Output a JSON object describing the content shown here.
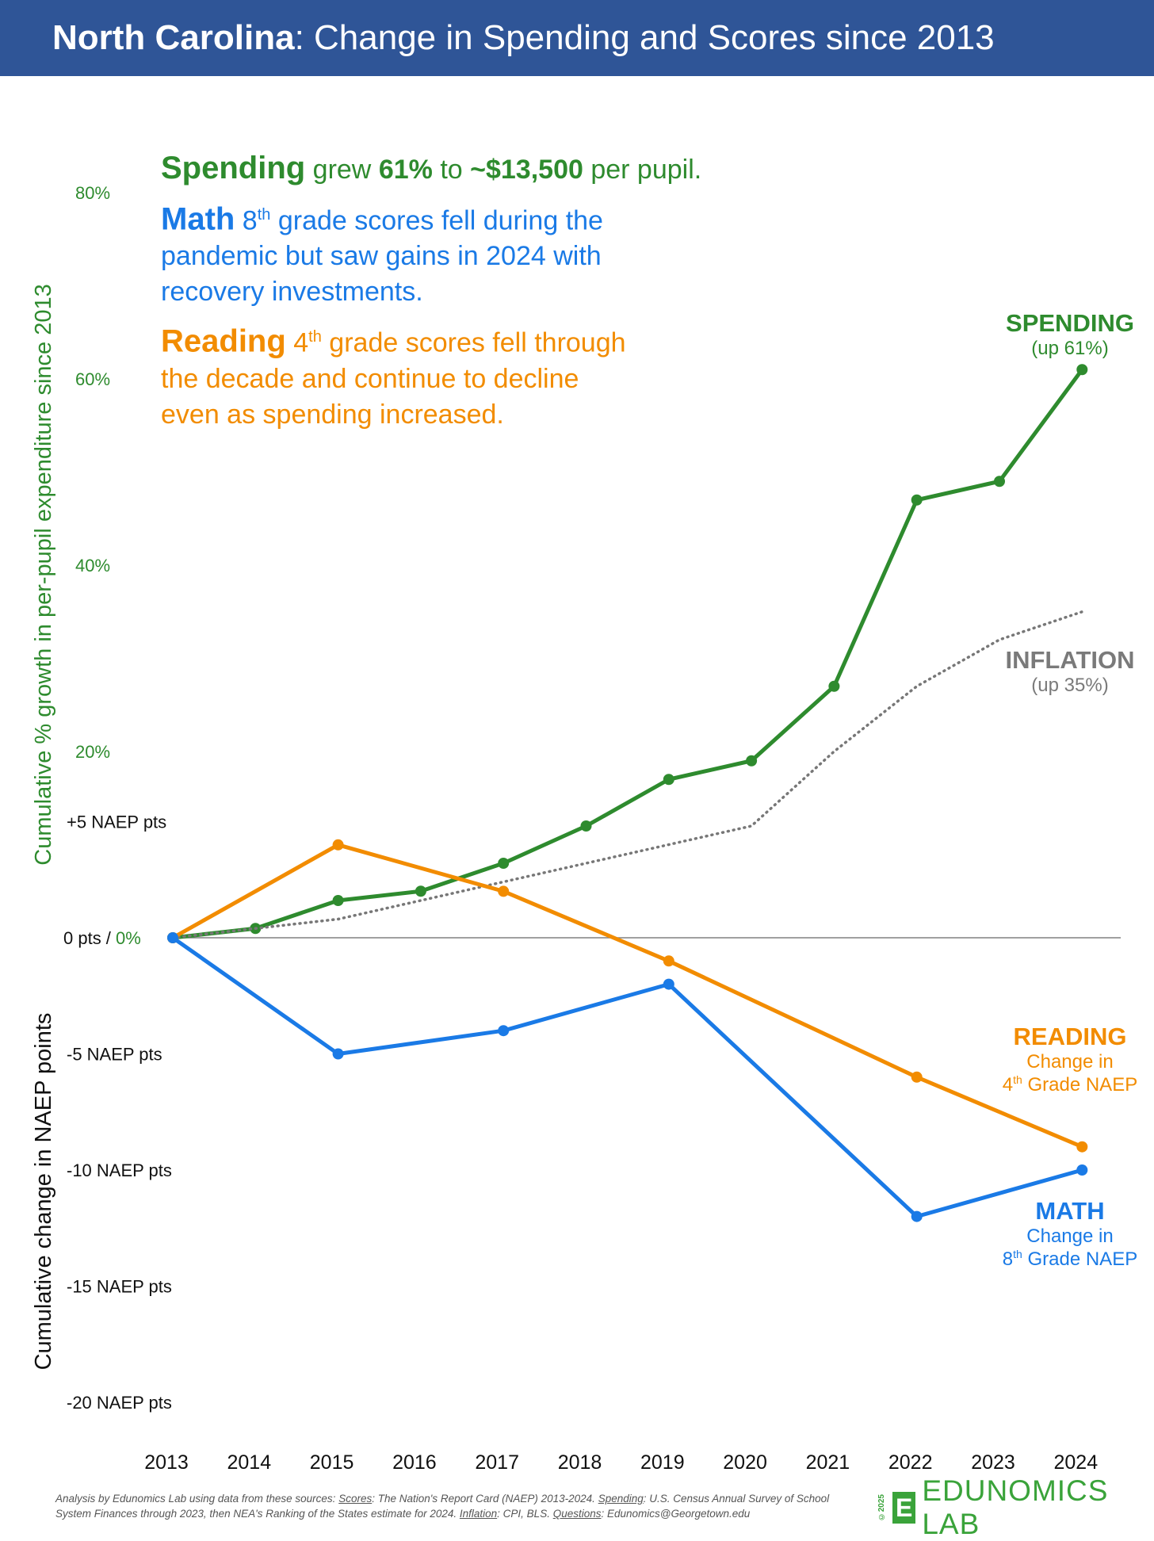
{
  "header": {
    "state": "North Carolina",
    "title": ": Change in Spending and Scores since 2013"
  },
  "summary": {
    "spending": {
      "label": "Spending",
      "pre": " grew ",
      "pct": "61%",
      "mid": " to ",
      "amount": "~$13,500",
      "post": " per pupil."
    },
    "math": {
      "label": "Math",
      "grade": "8",
      "sup": "th",
      "text1": " grade scores fell during the",
      "text2": "pandemic but saw gains in 2024 with",
      "text3": "recovery investments."
    },
    "reading": {
      "label": "Reading",
      "grade": "4",
      "sup": "th",
      "text1": " grade scores fell through",
      "text2": "the decade and continue to decline",
      "text3": "even as spending increased."
    }
  },
  "labels": {
    "spending": {
      "title": "SPENDING",
      "sub": "(up 61%)"
    },
    "inflation": {
      "title": "INFLATION",
      "sub": "(up 35%)"
    },
    "reading": {
      "title": "READING",
      "line1": "Change in",
      "grade": "4",
      "sup": "th",
      "line2": " Grade NAEP"
    },
    "math": {
      "title": "MATH",
      "line1": "Change in",
      "grade": "8",
      "sup": "th",
      "line2": " Grade NAEP"
    }
  },
  "footer": {
    "p1": "Analysis by Edunomics Lab using data from these sources: ",
    "scores_label": "Scores",
    "scores": ": The Nation's Report Card (NAEP) 2013-2024. ",
    "spending_label": "Spending",
    "spending": ": U.S. Census Annual Survey of School System Finances through 2023, then NEA's Ranking of the States estimate for 2024. ",
    "inflation_label": "Inflation",
    "inflation": ": CPI, BLS. ",
    "questions_label": "Questions",
    "questions": ": Edunomics@Georgetown.edu"
  },
  "brand": {
    "year": "©2025",
    "logo": "E",
    "name": "EDUNOMICS LAB"
  },
  "colors": {
    "spending": "#2e8b2e",
    "math": "#1a7ae6",
    "reading": "#f28c00",
    "inflation": "#777777",
    "header": "#2f5597"
  },
  "chart_data": {
    "type": "line",
    "title": "North Carolina: Change in Spending and Scores since 2013",
    "x": [
      2013,
      2014,
      2015,
      2016,
      2017,
      2018,
      2019,
      2020,
      2021,
      2022,
      2023,
      2024
    ],
    "ylabel_top": "Cumulative % growth in per-pupil expenditure since 2013",
    "ylabel_bottom": "Cumulative change in NAEP points",
    "pct_ticks": [
      {
        "v": 20,
        "label": "20%"
      },
      {
        "v": 40,
        "label": "40%"
      },
      {
        "v": 60,
        "label": "60%"
      },
      {
        "v": 80,
        "label": "80%"
      }
    ],
    "naep_ticks": [
      {
        "v": 5,
        "label": "+5 NAEP pts"
      },
      {
        "v": -5,
        "label": "-5 NAEP pts"
      },
      {
        "v": -10,
        "label": "-10 NAEP pts"
      },
      {
        "v": -15,
        "label": "-15 NAEP pts"
      },
      {
        "v": -20,
        "label": "-20 NAEP pts"
      }
    ],
    "zero_label": {
      "pts": "0 pts / ",
      "pct": "0%"
    },
    "ylim_pct": [
      0,
      80
    ],
    "ylim_naep": [
      -20,
      5
    ],
    "series": [
      {
        "name": "Spending",
        "axis": "pct",
        "color": "#2e8b2e",
        "style": "solid",
        "points": [
          [
            2013,
            0
          ],
          [
            2014,
            1
          ],
          [
            2015,
            4
          ],
          [
            2016,
            5
          ],
          [
            2017,
            8
          ],
          [
            2018,
            12
          ],
          [
            2019,
            17
          ],
          [
            2020,
            19
          ],
          [
            2021,
            27
          ],
          [
            2022,
            47
          ],
          [
            2023,
            49
          ],
          [
            2024,
            61
          ]
        ]
      },
      {
        "name": "Inflation",
        "axis": "pct",
        "color": "#777777",
        "style": "dotted",
        "points": [
          [
            2013,
            0
          ],
          [
            2014,
            1
          ],
          [
            2015,
            2
          ],
          [
            2016,
            4
          ],
          [
            2017,
            6
          ],
          [
            2018,
            8
          ],
          [
            2019,
            10
          ],
          [
            2020,
            12
          ],
          [
            2021,
            20
          ],
          [
            2022,
            27
          ],
          [
            2023,
            32
          ],
          [
            2024,
            35
          ]
        ]
      },
      {
        "name": "Reading",
        "axis": "naep",
        "color": "#f28c00",
        "style": "solid",
        "points": [
          [
            2013,
            0
          ],
          [
            2015,
            4
          ],
          [
            2017,
            2
          ],
          [
            2019,
            -1
          ],
          [
            2022,
            -6
          ],
          [
            2024,
            -9
          ]
        ]
      },
      {
        "name": "Math",
        "axis": "naep",
        "color": "#1a7ae6",
        "style": "solid",
        "points": [
          [
            2013,
            0
          ],
          [
            2015,
            -5
          ],
          [
            2017,
            -4
          ],
          [
            2019,
            -2
          ],
          [
            2022,
            -12
          ],
          [
            2024,
            -10
          ]
        ]
      }
    ]
  }
}
